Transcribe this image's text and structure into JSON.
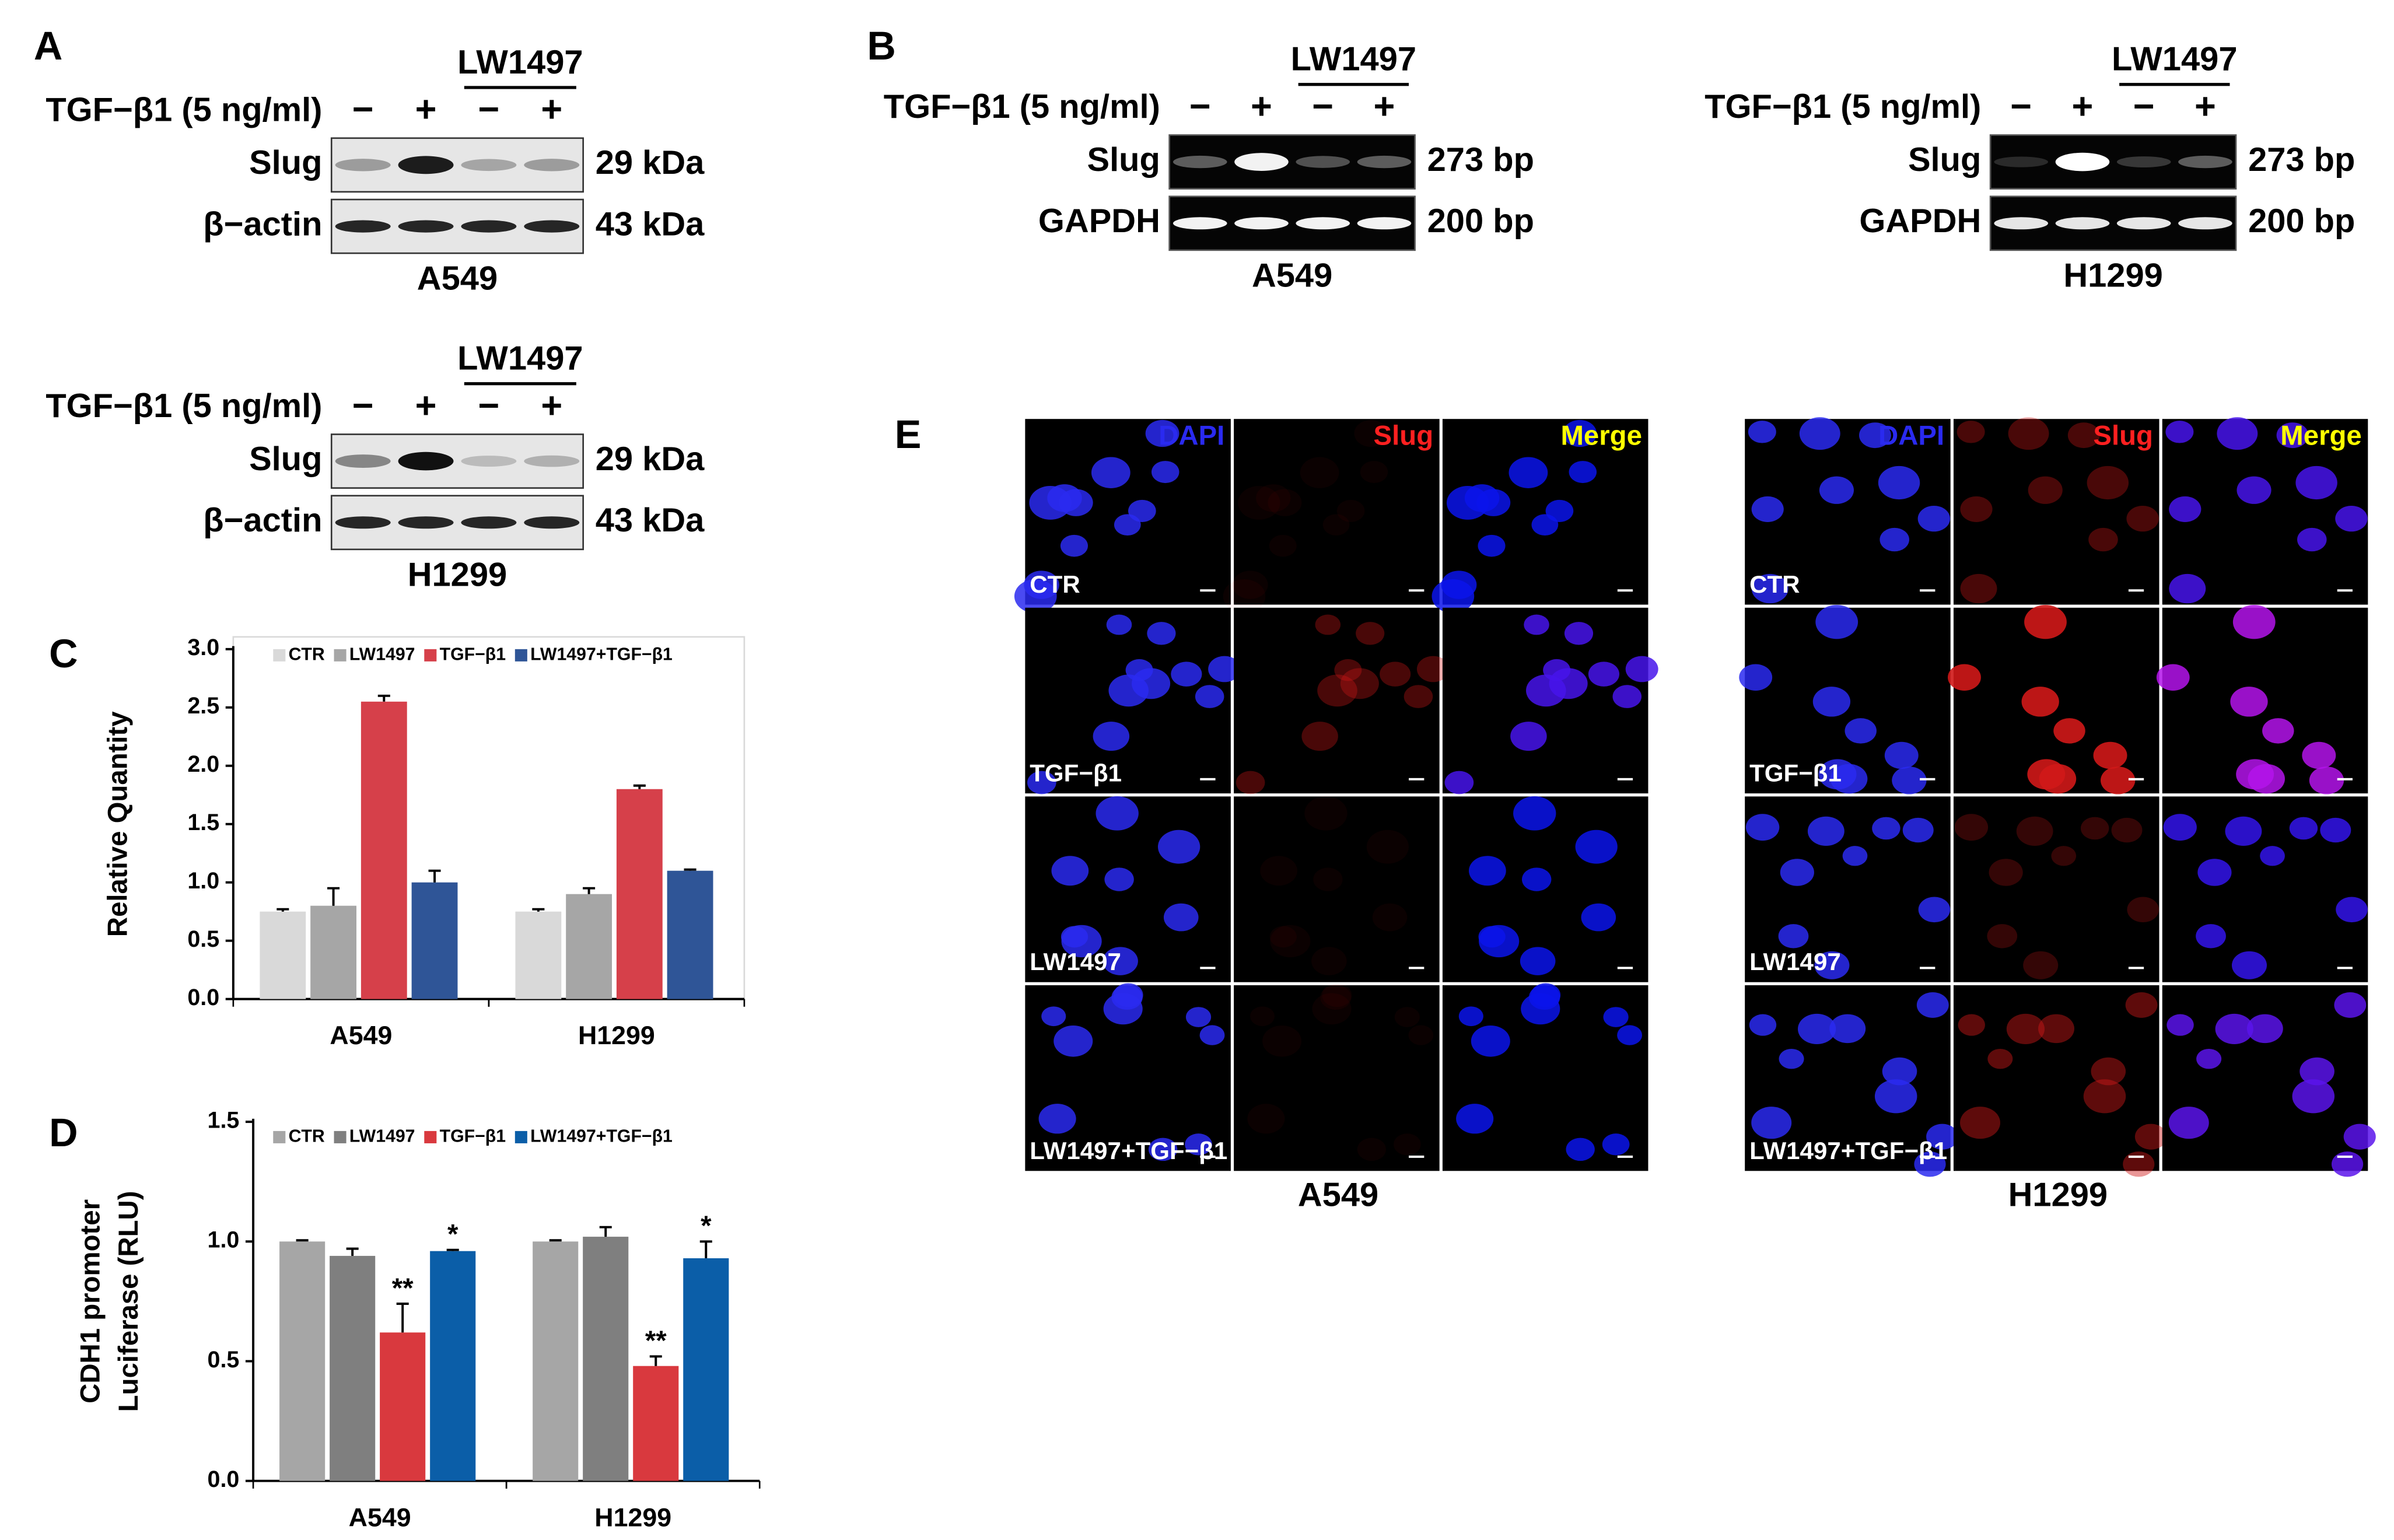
{
  "panel_a": {
    "label": "A",
    "blots": [
      {
        "group_label": "LW1497",
        "treatment": "TGF−β1 (5 ng/ml)",
        "signs": [
          "−",
          "+",
          "−",
          "+"
        ],
        "rows": [
          {
            "label": "Slug",
            "size": "29 kDa"
          },
          {
            "label": "β−actin",
            "size": "43 kDa"
          }
        ],
        "cell_line": "A549"
      },
      {
        "group_label": "LW1497",
        "treatment": "TGF−β1 (5 ng/ml)",
        "signs": [
          "−",
          "+",
          "−",
          "+"
        ],
        "rows": [
          {
            "label": "Slug",
            "size": "29 kDa"
          },
          {
            "label": "β−actin",
            "size": "43 kDa"
          }
        ],
        "cell_line": "H1299"
      }
    ]
  },
  "panel_b": {
    "label": "B",
    "blots": [
      {
        "group_label": "LW1497",
        "treatment": "TGF−β1 (5 ng/ml)",
        "signs": [
          "−",
          "+",
          "−",
          "+"
        ],
        "rows": [
          {
            "label": "Slug",
            "size": "273 bp"
          },
          {
            "label": "GAPDH",
            "size": "200 bp"
          }
        ],
        "cell_line": "A549"
      },
      {
        "group_label": "LW1497",
        "treatment": "TGF−β1 (5 ng/ml)",
        "signs": [
          "−",
          "+",
          "−",
          "+"
        ],
        "rows": [
          {
            "label": "Slug",
            "size": "273 bp"
          },
          {
            "label": "GAPDH",
            "size": "200 bp"
          }
        ],
        "cell_line": "H1299"
      }
    ]
  },
  "panel_e": {
    "label": "E",
    "channels": [
      "DAPI",
      "Slug",
      "Merge"
    ],
    "conditions": [
      "CTR",
      "TGF−β1",
      "LW1497",
      "LW1497+TGF−β1"
    ],
    "cell_lines": [
      "A549",
      "H1299"
    ]
  },
  "chart_data": [
    {
      "type": "bar",
      "panel": "C",
      "ylabel": "Relative Quantity",
      "categories": [
        "A549",
        "H1299"
      ],
      "series": [
        {
          "name": "CTR",
          "color": "#d9d9d9",
          "values": [
            0.75,
            0.75
          ],
          "errors": [
            0.02,
            0.02
          ]
        },
        {
          "name": "LW1497",
          "color": "#a6a6a6",
          "values": [
            0.8,
            0.9
          ],
          "errors": [
            0.15,
            0.05
          ]
        },
        {
          "name": "TGF−β1",
          "color": "#d6404a",
          "values": [
            2.55,
            1.8
          ],
          "errors": [
            0.05,
            0.03
          ]
        },
        {
          "name": "LW1497+TGF−β1",
          "color": "#2f5597",
          "values": [
            1.0,
            1.1
          ],
          "errors": [
            0.1,
            0.01
          ]
        }
      ],
      "ylim": [
        0,
        3
      ],
      "yticks": [
        {
          "value": 0,
          "label": "0.0"
        },
        {
          "value": 0.5,
          "label": "0.5"
        },
        {
          "value": 1,
          "label": "1.0"
        },
        {
          "value": 1.5,
          "label": "1.5"
        },
        {
          "value": 2,
          "label": "2.0"
        },
        {
          "value": 2.5,
          "label": "2.5"
        },
        {
          "value": 3,
          "label": "3.0"
        }
      ],
      "frame": true
    },
    {
      "type": "bar",
      "panel": "D",
      "ylabel": [
        "CDH1 promoter",
        "Luciferase (RLU)"
      ],
      "categories": [
        "A549",
        "H1299"
      ],
      "series": [
        {
          "name": "CTR",
          "color": "#a6a6a6",
          "values": [
            1.0,
            1.0
          ],
          "errors": [
            0.005,
            0.005
          ]
        },
        {
          "name": "LW1497",
          "color": "#7f7f7f",
          "values": [
            0.94,
            1.02
          ],
          "errors": [
            0.03,
            0.04
          ]
        },
        {
          "name": "TGF−β1",
          "color": "#d9393e",
          "values": [
            0.62,
            0.48
          ],
          "errors": [
            0.12,
            0.04
          ],
          "significance": [
            "**",
            "**"
          ]
        },
        {
          "name": "LW1497+TGF−β1",
          "color": "#0b5ea8",
          "values": [
            0.96,
            0.93
          ],
          "errors": [
            0.005,
            0.07
          ],
          "significance": [
            "*",
            "*"
          ]
        }
      ],
      "ylim": [
        0,
        1.5
      ],
      "yticks": [
        {
          "value": 0,
          "label": "0.0"
        },
        {
          "value": 0.5,
          "label": "0.5"
        },
        {
          "value": 1,
          "label": "1.0"
        },
        {
          "value": 1.5,
          "label": "1.5"
        }
      ],
      "frame": false
    }
  ]
}
